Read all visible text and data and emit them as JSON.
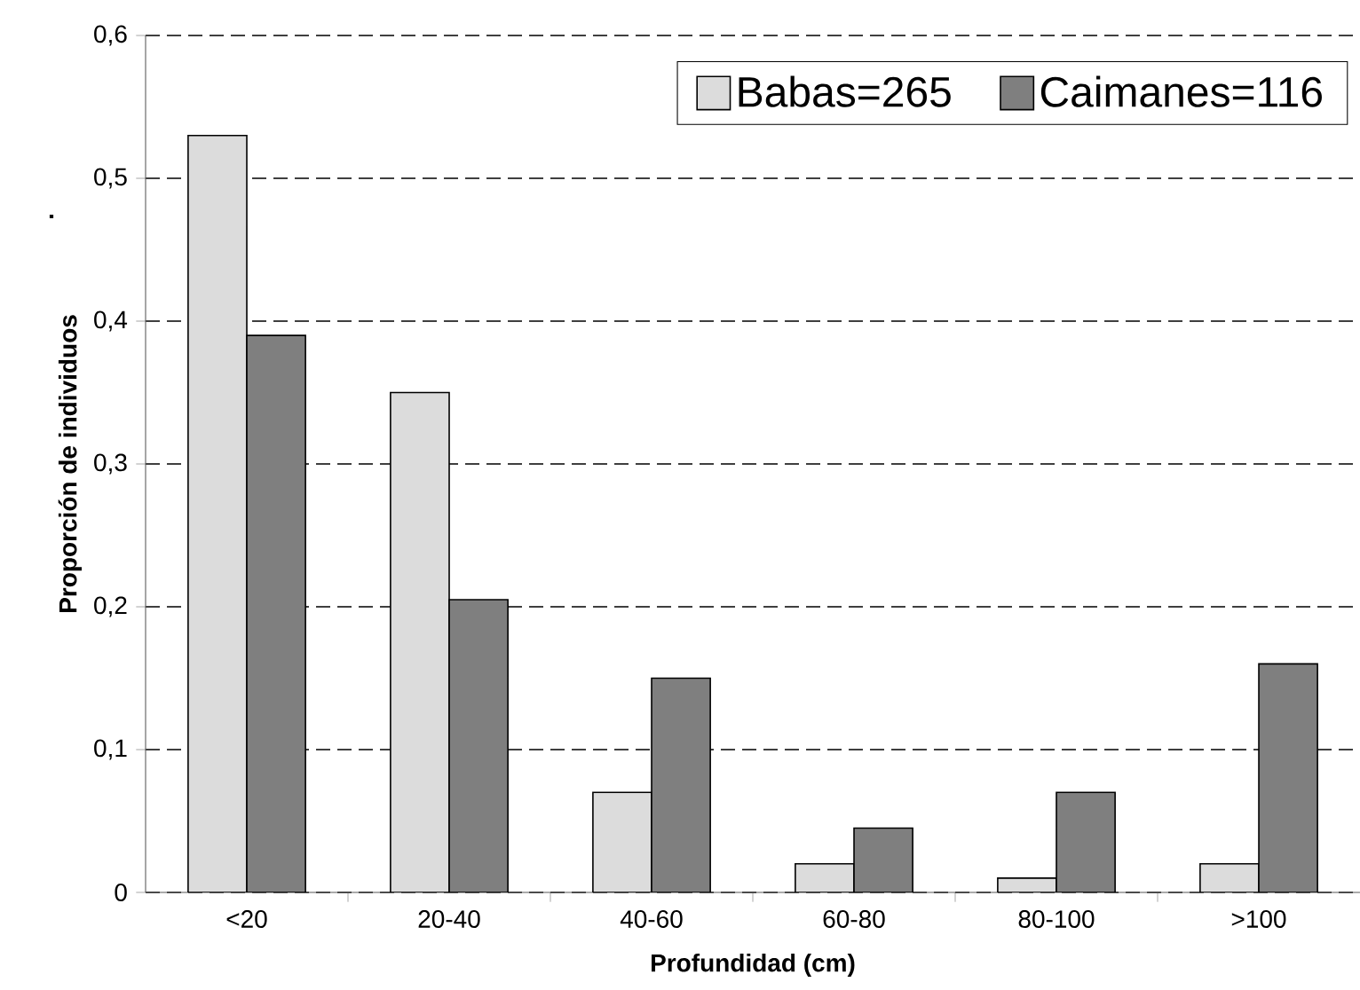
{
  "chart_data": {
    "type": "bar",
    "xlabel": "Profundidad (cm)",
    "ylabel": "Proporción de individuos",
    "categories": [
      "<20",
      "20-40",
      "40-60",
      "60-80",
      "80-100",
      ">100"
    ],
    "series": [
      {
        "name": "Babas=265",
        "color": "#dcdcdc",
        "values": [
          0.53,
          0.35,
          0.07,
          0.02,
          0.01,
          0.02
        ]
      },
      {
        "name": "Caimanes=116",
        "color": "#7f7f7f",
        "values": [
          0.39,
          0.205,
          0.15,
          0.045,
          0.07,
          0.16
        ]
      }
    ],
    "ylim": [
      0,
      0.6
    ],
    "yticks": [
      0,
      {
        "value": 0.1,
        "label": "0,1"
      },
      {
        "value": 0.2,
        "label": "0,2"
      },
      {
        "value": 0.3,
        "label": "0,3"
      },
      {
        "value": 0.4,
        "label": "0,4"
      },
      {
        "value": 0.5,
        "label": "0,5"
      },
      {
        "value": 0.6,
        "label": "0,6"
      }
    ],
    "grid": "y",
    "legend": "top right",
    "annotations": [
      "."
    ]
  }
}
